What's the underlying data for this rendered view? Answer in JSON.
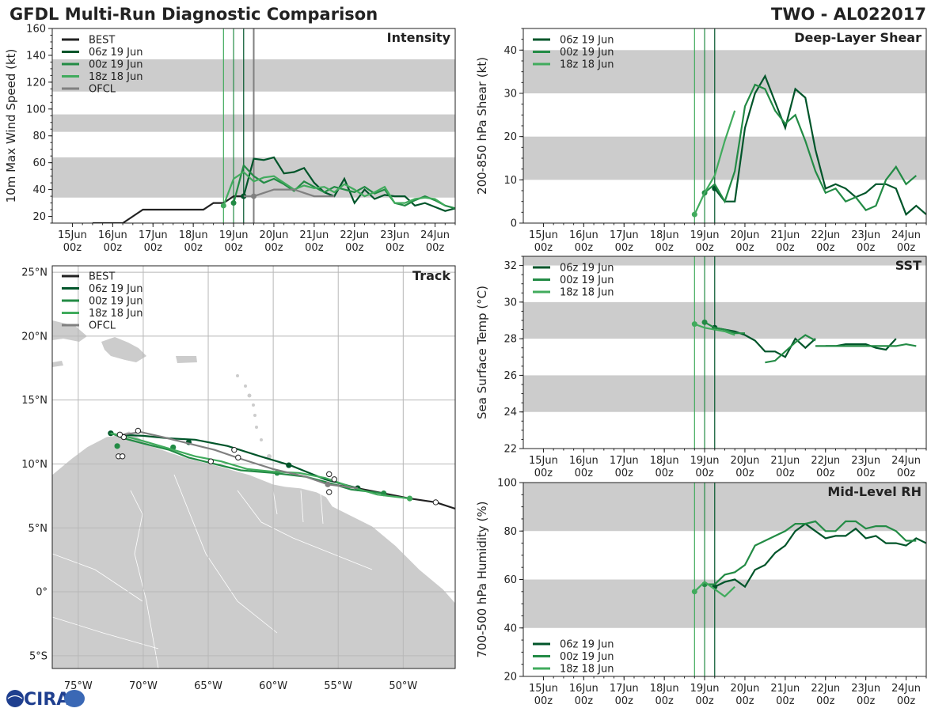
{
  "header": {
    "title_left": "GFDL Multi-Run Diagnostic Comparison",
    "title_right": "TWO - AL022017"
  },
  "logo_text": "CIRA",
  "colors": {
    "best": "#222222",
    "run06": "#00552a",
    "run00": "#238b45",
    "run18": "#41ab5d",
    "ofcl": "#808080",
    "band": "#cccccc",
    "land": "#cccccc"
  },
  "time_axis": {
    "labels": [
      [
        "15Jun",
        "00z"
      ],
      [
        "16Jun",
        "00z"
      ],
      [
        "17Jun",
        "00z"
      ],
      [
        "18Jun",
        "00z"
      ],
      [
        "19Jun",
        "00z"
      ],
      [
        "20Jun",
        "00z"
      ],
      [
        "21Jun",
        "00z"
      ],
      [
        "22Jun",
        "00z"
      ],
      [
        "23Jun",
        "00z"
      ],
      [
        "24Jun",
        "00z"
      ]
    ],
    "run_lines": [
      {
        "day": 18.75,
        "run": "run18"
      },
      {
        "day": 19.0,
        "run": "run00"
      },
      {
        "day": 19.25,
        "run": "run06"
      }
    ]
  },
  "chart_data": [
    {
      "id": "intensity",
      "type": "line",
      "title": "Intensity",
      "ylabel": "10m Max Wind Speed (kt)",
      "xlim": [
        14.5,
        24.5
      ],
      "ylim": [
        15,
        160
      ],
      "yticks": [
        20,
        40,
        60,
        80,
        100,
        120,
        140,
        160
      ],
      "bands": [
        [
          34,
          64
        ],
        [
          83,
          96
        ],
        [
          113,
          137
        ]
      ],
      "extra_vlines": [
        {
          "day": 19.5,
          "color": "#808080"
        }
      ],
      "legend": [
        "BEST",
        "06z 19 Jun",
        "00z 19 Jun",
        "18z 18 Jun",
        "OFCL"
      ],
      "series": [
        {
          "name": "BEST",
          "key": "best",
          "x": [
            15.5,
            15.75,
            16,
            16.25,
            16.5,
            16.75,
            17,
            17.25,
            17.5,
            17.75,
            18,
            18.25,
            18.5,
            18.75,
            19,
            19.25
          ],
          "y": [
            15,
            15,
            15,
            15,
            20,
            25,
            25,
            25,
            25,
            25,
            25,
            25,
            30,
            30,
            35,
            35
          ],
          "markers": [
            19.25
          ]
        },
        {
          "name": "06z 19 Jun",
          "key": "run06",
          "x": [
            19.25,
            19.5,
            19.75,
            20,
            20.25,
            20.5,
            20.75,
            21,
            21.25,
            21.5,
            21.75,
            22,
            22.25,
            22.5,
            22.75,
            23,
            23.25,
            23.5,
            23.75,
            24,
            24.25,
            24.5
          ],
          "y": [
            35,
            63,
            62,
            64,
            52,
            53,
            56,
            45,
            38,
            35,
            48,
            30,
            40,
            33,
            36,
            35,
            35,
            28,
            30,
            27,
            24,
            26
          ],
          "markers": [
            19.25
          ]
        },
        {
          "name": "00z 19 Jun",
          "key": "run00",
          "x": [
            19,
            19.25,
            19.5,
            19.75,
            20,
            20.25,
            20.5,
            20.75,
            21,
            21.25,
            21.5,
            21.75,
            22,
            22.25,
            22.5,
            22.75,
            23,
            23.25,
            23.5,
            23.75,
            24,
            24.25,
            24.5
          ],
          "y": [
            30,
            58,
            50,
            45,
            48,
            44,
            39,
            46,
            42,
            38,
            42,
            40,
            38,
            42,
            37,
            40,
            30,
            28,
            32,
            35,
            32,
            28,
            26
          ],
          "markers": [
            19.0
          ]
        },
        {
          "name": "18z 18 Jun",
          "key": "run18",
          "x": [
            18.75,
            19,
            19.25,
            19.5,
            19.75,
            20,
            20.25,
            20.5,
            20.75,
            21,
            21.25,
            21.5,
            21.75,
            22,
            22.25,
            22.5,
            22.75,
            23,
            23.25,
            23.5,
            23.75,
            24,
            24.25
          ],
          "y": [
            28,
            48,
            53,
            46,
            49,
            50,
            45,
            40,
            43,
            41,
            42,
            38,
            44,
            40,
            35,
            38,
            42,
            30,
            30,
            33,
            34,
            33,
            28
          ],
          "markers": [
            18.75
          ]
        },
        {
          "name": "OFCL",
          "key": "ofcl",
          "x": [
            19.25,
            19.5,
            20,
            20.5,
            21,
            21.5
          ],
          "y": [
            35,
            35,
            40,
            40,
            35,
            35
          ],
          "markers": [
            19.5
          ]
        }
      ]
    },
    {
      "id": "shear",
      "type": "line",
      "title": "Deep-Layer Shear",
      "ylabel": "200-850 hPa Shear (kt)",
      "xlim": [
        14.5,
        24.5
      ],
      "ylim": [
        0,
        45
      ],
      "yticks": [
        0,
        10,
        20,
        30,
        40
      ],
      "bands": [
        [
          10,
          20
        ],
        [
          30,
          40
        ]
      ],
      "legend": [
        "06z 19 Jun",
        "00z 19 Jun",
        "18z 18 Jun"
      ],
      "series": [
        {
          "name": "06z 19 Jun",
          "key": "run06",
          "x": [
            19.25,
            19.5,
            19.75,
            20,
            20.25,
            20.5,
            20.75,
            21,
            21.25,
            21.5,
            21.75,
            22,
            22.25,
            22.5,
            22.75,
            23,
            23.25,
            23.5,
            23.75,
            24,
            24.25,
            24.5
          ],
          "y": [
            8,
            5,
            5,
            22,
            30,
            34,
            28,
            22,
            31,
            29,
            17,
            8,
            9,
            8,
            6,
            7,
            9,
            9,
            8,
            2,
            4,
            2
          ],
          "markers": [
            19.25
          ]
        },
        {
          "name": "00z 19 Jun",
          "key": "run00",
          "x": [
            19,
            19.25,
            19.5,
            19.75,
            20,
            20.25,
            20.5,
            20.75,
            21,
            21.25,
            21.5,
            21.75,
            22,
            22.25,
            22.5,
            22.75,
            23,
            23.25,
            23.5,
            23.75,
            24,
            24.25
          ],
          "y": [
            7,
            9,
            5,
            12,
            27,
            32,
            31,
            26,
            23,
            25,
            19,
            12,
            7,
            8,
            5,
            6,
            3,
            4,
            10,
            13,
            9,
            11
          ],
          "markers": [
            19.0
          ]
        },
        {
          "name": "18z 18 Jun",
          "key": "run18",
          "x": [
            18.75,
            19,
            19.25,
            19.5,
            19.75
          ],
          "y": [
            2,
            7,
            11,
            19,
            26
          ],
          "markers": [
            18.75
          ]
        }
      ]
    },
    {
      "id": "sst",
      "type": "line",
      "title": "SST",
      "ylabel": "Sea Surface Temp (°C)",
      "xlim": [
        14.5,
        24.5
      ],
      "ylim": [
        22,
        32.5
      ],
      "yticks": [
        22,
        24,
        26,
        28,
        30,
        32
      ],
      "bands": [
        [
          24,
          26
        ],
        [
          28,
          30
        ],
        [
          32,
          34
        ]
      ],
      "legend": [
        "06z 19 Jun",
        "00z 19 Jun",
        "18z 18 Jun"
      ],
      "series": [
        {
          "name": "06z 19 Jun",
          "key": "run06",
          "x": [
            19.25,
            19.5,
            19.75,
            20,
            20.25,
            20.5,
            20.75,
            21,
            21.25,
            21.5,
            21.75,
            null,
            22,
            22.25,
            22.5,
            22.75,
            23,
            23.25,
            23.5,
            23.75
          ],
          "y": [
            28.6,
            28.5,
            28.4,
            28.2,
            27.9,
            27.3,
            27.3,
            27.0,
            28.0,
            27.5,
            28.0,
            null,
            27.6,
            27.6,
            27.7,
            27.7,
            27.7,
            27.5,
            27.4,
            28.0
          ],
          "markers": [
            19.25
          ]
        },
        {
          "name": "00z 19 Jun",
          "key": "run00",
          "x": [
            19,
            19.25,
            19.5,
            19.75,
            20,
            null,
            20.5,
            20.75,
            21,
            21.25,
            21.5,
            21.75,
            null,
            21.75,
            22,
            22.25,
            22.5,
            22.75,
            23,
            23.25,
            23.5,
            23.75,
            24,
            24.25
          ],
          "y": [
            28.9,
            28.6,
            28.5,
            28.3,
            28.3,
            null,
            26.7,
            26.8,
            27.3,
            27.8,
            28.2,
            27.9,
            null,
            27.6,
            27.6,
            27.6,
            27.6,
            27.6,
            27.6,
            27.6,
            27.6,
            27.6,
            27.7,
            27.6
          ],
          "markers": [
            19.0
          ]
        },
        {
          "name": "18z 18 Jun",
          "key": "run18",
          "x": [
            18.75,
            19,
            19.25,
            19.5,
            19.75
          ],
          "y": [
            28.8,
            28.6,
            28.5,
            28.4,
            28.2
          ],
          "markers": [
            18.75
          ]
        }
      ]
    },
    {
      "id": "rh",
      "type": "line",
      "title": "Mid-Level RH",
      "ylabel": "700-500 hPa Humidity (%)",
      "xlim": [
        14.5,
        24.5
      ],
      "ylim": [
        20,
        100
      ],
      "yticks": [
        20,
        40,
        60,
        80,
        100
      ],
      "bands": [
        [
          40,
          60
        ],
        [
          80,
          100
        ]
      ],
      "legend": [
        "06z 19 Jun",
        "00z 19 Jun",
        "18z 18 Jun"
      ],
      "legend_pos": "bottom-left",
      "series": [
        {
          "name": "06z 19 Jun",
          "key": "run06",
          "x": [
            19.25,
            19.5,
            19.75,
            20,
            20.25,
            20.5,
            20.75,
            21,
            21.25,
            21.5,
            21.75,
            22,
            22.25,
            22.5,
            22.75,
            23,
            23.25,
            23.5,
            23.75,
            24,
            24.25,
            24.5
          ],
          "y": [
            57,
            59,
            60,
            57,
            64,
            66,
            71,
            74,
            80,
            83,
            80,
            77,
            78,
            78,
            81,
            77,
            78,
            75,
            75,
            74,
            77,
            75
          ],
          "markers": [
            19.25
          ]
        },
        {
          "name": "00z 19 Jun",
          "key": "run00",
          "x": [
            19,
            19.25,
            19.5,
            19.75,
            20,
            20.25,
            20.5,
            20.75,
            21,
            21.25,
            21.5,
            21.75,
            22,
            22.25,
            22.5,
            22.75,
            23,
            23.25,
            23.5,
            23.75,
            24,
            24.25
          ],
          "y": [
            58,
            58,
            62,
            63,
            66,
            74,
            76,
            78,
            80,
            83,
            83,
            84,
            80,
            80,
            84,
            84,
            81,
            82,
            82,
            80,
            76,
            76
          ],
          "markers": [
            19.0
          ]
        },
        {
          "name": "18z 18 Jun",
          "key": "run18",
          "x": [
            18.75,
            19,
            19.25,
            19.5,
            19.75
          ],
          "y": [
            55,
            59,
            56,
            53,
            57
          ],
          "markers": [
            18.75
          ]
        }
      ]
    },
    {
      "id": "track",
      "type": "scatter",
      "title": "Track",
      "lonlim": [
        -77,
        -46
      ],
      "latlim": [
        -6,
        25.5
      ],
      "lon_ticks": [
        [
          -75,
          "75°W"
        ],
        [
          -70,
          "70°W"
        ],
        [
          -65,
          "65°W"
        ],
        [
          -60,
          "60°W"
        ],
        [
          -55,
          "55°W"
        ],
        [
          -50,
          "50°W"
        ]
      ],
      "lat_ticks": [
        [
          25,
          "25°N"
        ],
        [
          20,
          "20°N"
        ],
        [
          15,
          "15°N"
        ],
        [
          10,
          "10°N"
        ],
        [
          5,
          "5°N"
        ],
        [
          0,
          "0°"
        ],
        [
          -5,
          "5°S"
        ]
      ],
      "legend": [
        "BEST",
        "06z 19 Jun",
        "00z 19 Jun",
        "18z 18 Jun",
        "OFCL"
      ],
      "series": [
        {
          "name": "BEST",
          "key": "best",
          "lon": [
            -46,
            -47.5,
            -49.5,
            -51.5,
            -53.5,
            -55.5
          ],
          "lat": [
            6.5,
            7.0,
            7.3,
            7.7,
            8.1,
            8.4
          ],
          "open": [
            [
              -47.5,
              7.0
            ]
          ]
        },
        {
          "name": "06z 19 Jun",
          "key": "run06",
          "lon": [
            -53.5,
            -56,
            -58.7,
            -61,
            -63.5,
            -66,
            -68,
            -70,
            -72.2,
            -72.5
          ],
          "lat": [
            8.1,
            8.8,
            9.9,
            10.6,
            11.4,
            11.9,
            12.0,
            12.2,
            12.3,
            12.5
          ],
          "filled": [
            [
              -53.5,
              8.1
            ],
            [
              -58.8,
              9.9
            ],
            [
              -66.5,
              11.7
            ],
            [
              -72.5,
              12.4
            ]
          ]
        },
        {
          "name": "00z 19 Jun",
          "key": "run00",
          "lon": [
            -51.5,
            -54,
            -56,
            -57.5,
            -60,
            -62.5,
            -64.5,
            -66.5,
            -68,
            -70,
            -71.5,
            -72.2,
            -72.6
          ],
          "lat": [
            7.7,
            8.0,
            8.6,
            9.0,
            9.3,
            9.5,
            10.0,
            10.5,
            11.1,
            11.6,
            12.0,
            12.3,
            12.4
          ],
          "filled": [
            [
              -51.5,
              7.7
            ],
            [
              -59.7,
              9.3
            ],
            [
              -67.7,
              11.3
            ],
            [
              -72.0,
              11.4
            ]
          ]
        },
        {
          "name": "18z 18 Jun",
          "key": "run18",
          "lon": [
            -49.5,
            -52,
            -54,
            -56,
            -58,
            -60,
            -62,
            -64,
            -66,
            -68,
            -70,
            -71.5,
            -72.5
          ],
          "lat": [
            7.3,
            7.6,
            8.2,
            8.9,
            9.3,
            9.4,
            9.6,
            10.2,
            10.6,
            11.2,
            11.8,
            12.2,
            12.4
          ],
          "filled": [
            [
              -49.5,
              7.3
            ]
          ]
        },
        {
          "name": "OFCL",
          "key": "ofcl",
          "lon": [
            -53.5,
            -55.8,
            -57.5,
            -60,
            -62.5,
            -64.5,
            -66.5,
            -68.5,
            -70.2,
            -71.5
          ],
          "lat": [
            8.1,
            8.4,
            9.0,
            9.6,
            10.4,
            11.1,
            11.6,
            12.1,
            12.5,
            12.3
          ],
          "filled": [
            [
              -55.8,
              8.4
            ]
          ]
        },
        {
          "name": "points",
          "key": "best",
          "open": [
            [
              -55.7,
              9.2
            ],
            [
              -55.3,
              8.8
            ],
            [
              -55.7,
              7.8
            ],
            [
              -62.7,
              10.5
            ],
            [
              -63,
              11.1
            ],
            [
              -64.8,
              10.2
            ],
            [
              -70.4,
              12.6
            ],
            [
              -71.5,
              12.1
            ],
            [
              -71.8,
              12.3
            ],
            [
              -71.9,
              10.6
            ],
            [
              -71.6,
              10.6
            ]
          ]
        }
      ]
    }
  ]
}
